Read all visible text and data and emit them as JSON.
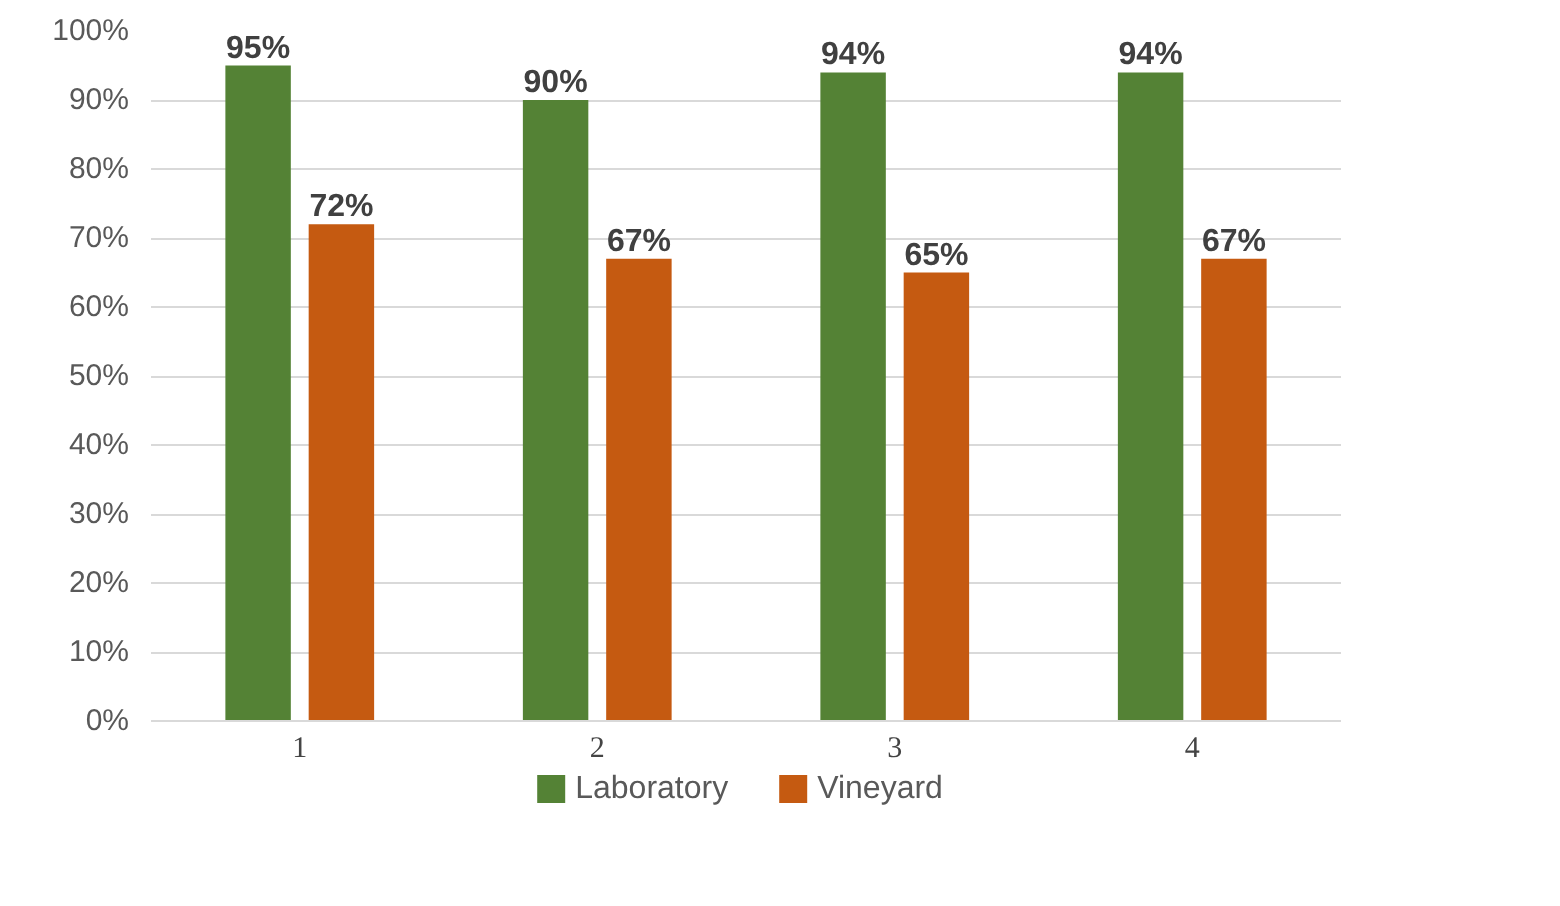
{
  "chart_data": {
    "type": "bar",
    "categories": [
      "1",
      "2",
      "3",
      "4"
    ],
    "series": [
      {
        "name": "Laboratory",
        "color": "#548235",
        "values": [
          95,
          90,
          94,
          94
        ],
        "value_labels": [
          "95%",
          "90%",
          "94%",
          "94%"
        ]
      },
      {
        "name": "Vineyard",
        "color": "#c55a11",
        "values": [
          72,
          67,
          65,
          67
        ],
        "value_labels": [
          "72%",
          "67%",
          "65%",
          "67%"
        ]
      }
    ],
    "ylim": [
      0,
      100
    ],
    "yticks": [
      {
        "value": 0,
        "label": "0%"
      },
      {
        "value": 10,
        "label": "10%"
      },
      {
        "value": 20,
        "label": "20%"
      },
      {
        "value": 30,
        "label": "30%"
      },
      {
        "value": 40,
        "label": "40%"
      },
      {
        "value": 50,
        "label": "50%"
      },
      {
        "value": 60,
        "label": "60%"
      },
      {
        "value": 70,
        "label": "70%"
      },
      {
        "value": 80,
        "label": "80%"
      },
      {
        "value": 90,
        "label": "90%"
      },
      {
        "value": 100,
        "label": "100%"
      }
    ],
    "grid": "y",
    "legend": "bottom"
  }
}
